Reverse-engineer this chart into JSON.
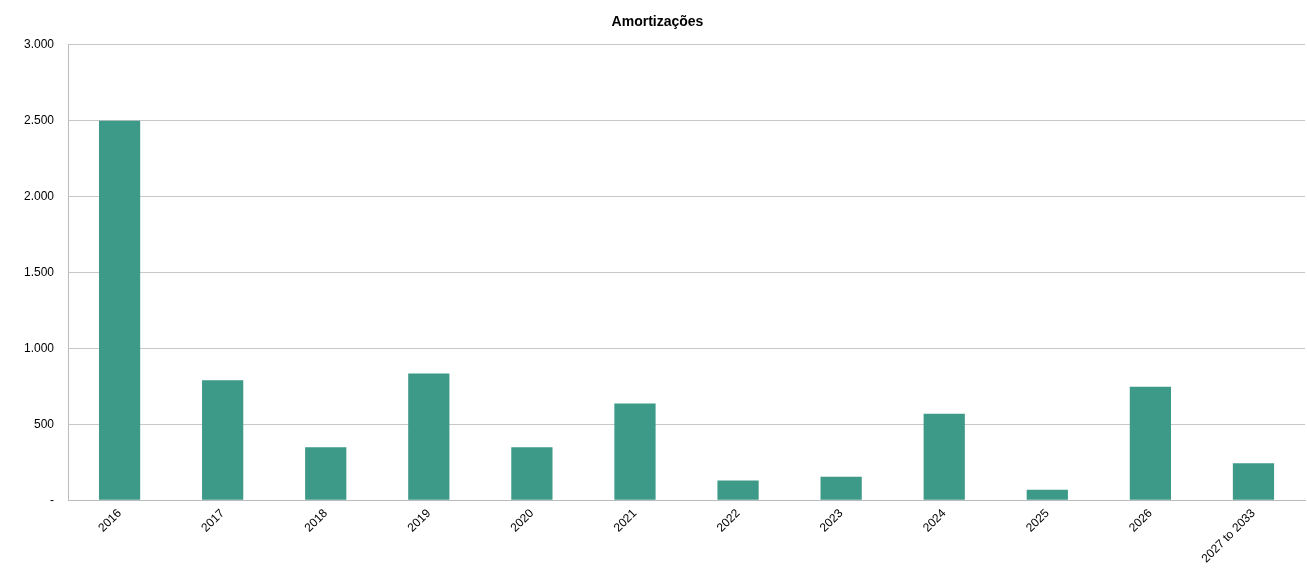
{
  "chart_data": {
    "type": "bar",
    "title": "Amortizações",
    "categories": [
      "2016",
      "2017",
      "2018",
      "2019",
      "2020",
      "2021",
      "2022",
      "2023",
      "2024",
      "2025",
      "2026",
      "2027 to 2033"
    ],
    "values": [
      2500,
      790,
      350,
      835,
      350,
      637,
      130,
      155,
      570,
      70,
      747,
      244
    ],
    "color": "#3d9988",
    "ylim": [
      0,
      3000
    ],
    "yticks": [
      {
        "value": 0,
        "label": "-"
      },
      {
        "value": 500,
        "label": "500"
      },
      {
        "value": 1000,
        "label": "1.000"
      },
      {
        "value": 1500,
        "label": "1.500"
      },
      {
        "value": 2000,
        "label": "2.000"
      },
      {
        "value": 2500,
        "label": "2.500"
      },
      {
        "value": 3000,
        "label": "3.000"
      }
    ],
    "grid": "y"
  }
}
